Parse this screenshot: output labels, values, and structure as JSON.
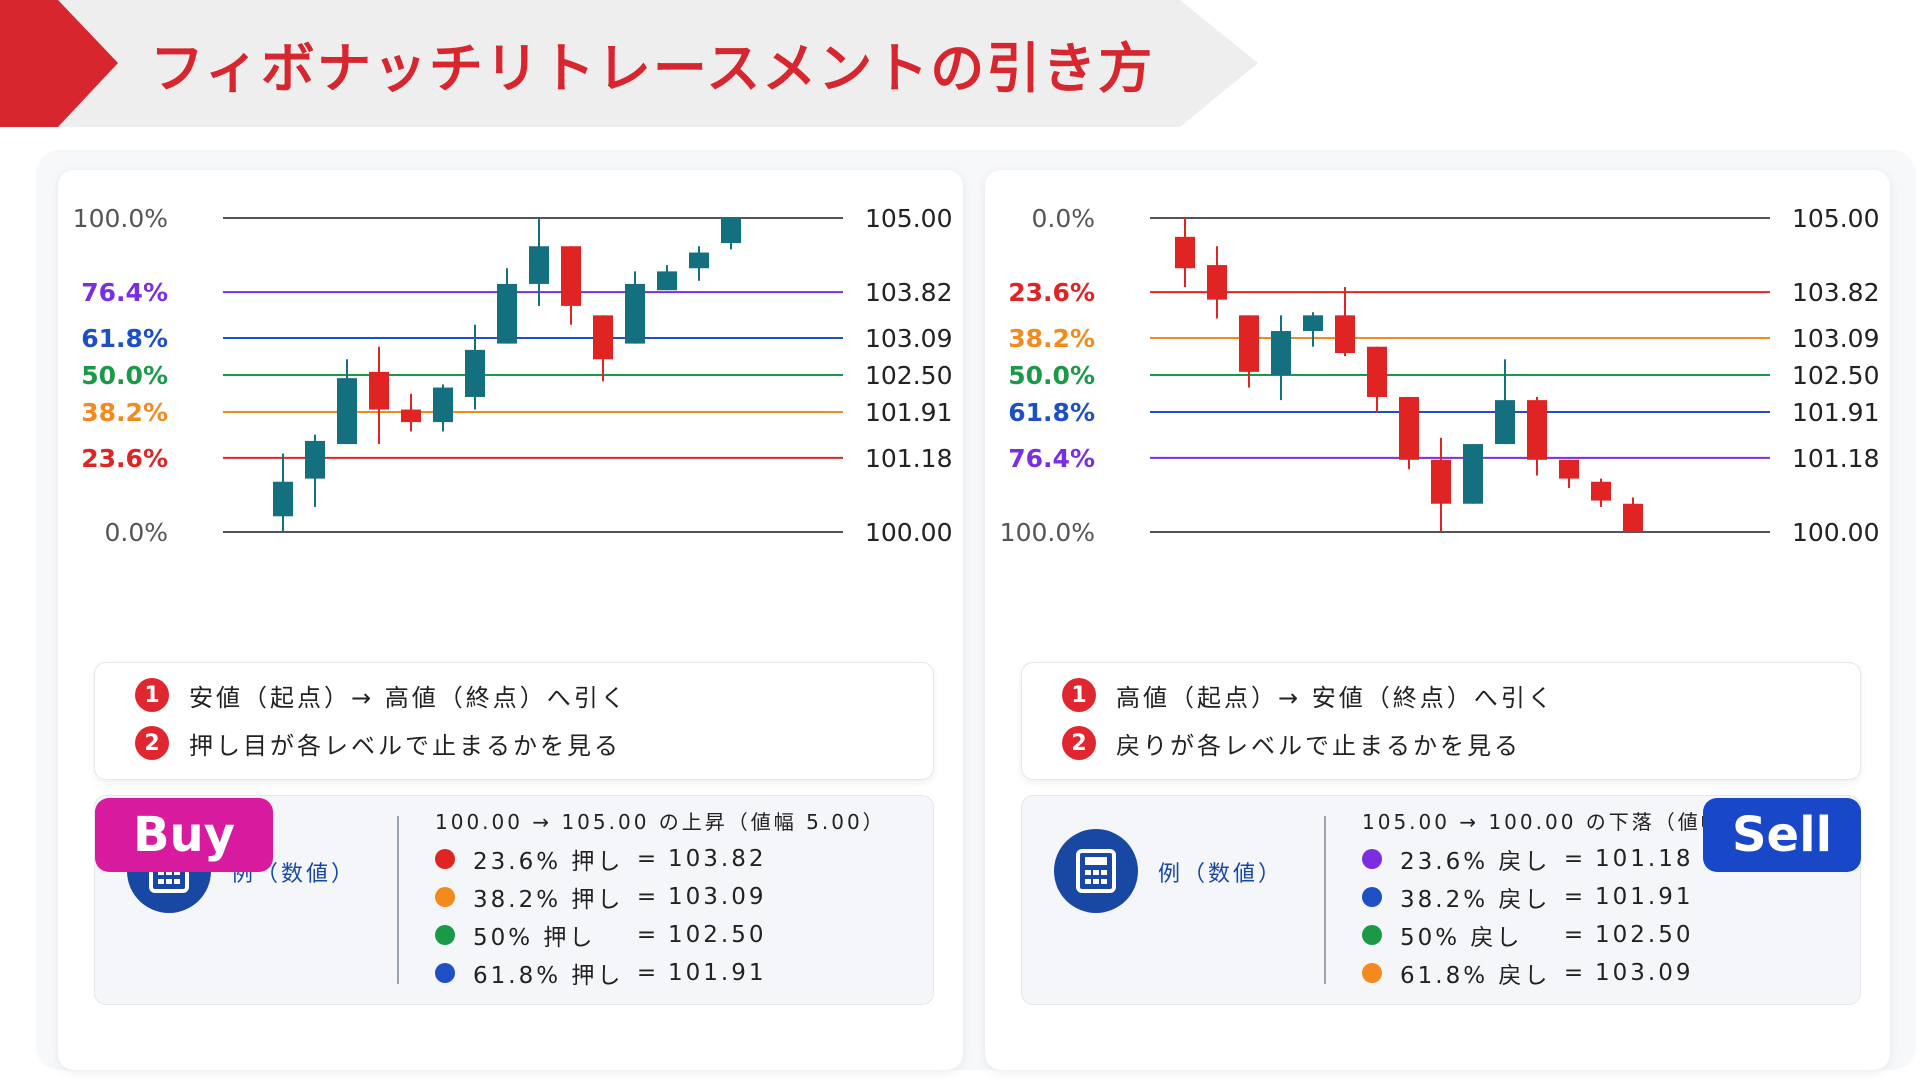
{
  "title": "フィボナッチリトレースメントの引き方",
  "colors": {
    "accent_red": "#d8262e",
    "bull": "#14707e",
    "bear": "#e02424",
    "buy_badge": "#d81b9e",
    "sell_badge": "#1848c8",
    "calc_icon": "#1848a4"
  },
  "buy": {
    "badge": "Buy",
    "steps": [
      {
        "num": "1",
        "text": "安値（起点）→ 高値（終点）へ引く"
      },
      {
        "num": "2",
        "text": "押し目が各レベルで止まるかを見る"
      }
    ],
    "example": {
      "icon": "calculator-icon",
      "label": "例（数値）",
      "header": "100.00 → 105.00 の上昇（値幅 5.00）",
      "rows": [
        {
          "color": "#e02424",
          "level": "23.6% 押し",
          "eq": "=",
          "value": "103.82"
        },
        {
          "color": "#f28a1e",
          "level": "38.2% 押し",
          "eq": "=",
          "value": "103.09"
        },
        {
          "color": "#1a9a46",
          "level": "50% 押し",
          "eq": "=",
          "value": "102.50"
        },
        {
          "color": "#1f4fc4",
          "level": "61.8% 押し",
          "eq": "=",
          "value": "101.91"
        }
      ]
    }
  },
  "sell": {
    "badge": "Sell",
    "steps": [
      {
        "num": "1",
        "text": "高値（起点）→ 安値（終点）へ引く"
      },
      {
        "num": "2",
        "text": "戻りが各レベルで止まるかを見る"
      }
    ],
    "example": {
      "icon": "calculator-icon",
      "label": "例（数値）",
      "header": "105.00 → 100.00 の下落（値幅 5.00）",
      "rows": [
        {
          "color": "#7b2ee0",
          "level": "23.6% 戻し",
          "eq": "=",
          "value": "101.18"
        },
        {
          "color": "#1f4fc4",
          "level": "38.2% 戻し",
          "eq": "=",
          "value": "101.91"
        },
        {
          "color": "#1a9a46",
          "level": "50% 戻し",
          "eq": "=",
          "value": "102.50"
        },
        {
          "color": "#f28a1e",
          "level": "61.8% 戻し",
          "eq": "=",
          "value": "103.09"
        }
      ]
    }
  },
  "chart_data": [
    {
      "type": "candlestick",
      "ylim": [
        100.0,
        105.0
      ],
      "grid": false,
      "levels": [
        {
          "pct": "100.0%",
          "price": 105.0,
          "price_label": "105.00",
          "color": "#555555"
        },
        {
          "pct": "76.4%",
          "price": 103.82,
          "price_label": "103.82",
          "color": "#7b2ee0"
        },
        {
          "pct": "61.8%",
          "price": 103.09,
          "price_label": "103.09",
          "color": "#1f4fc4"
        },
        {
          "pct": "50.0%",
          "price": 102.5,
          "price_label": "102.50",
          "color": "#1a9a46"
        },
        {
          "pct": "38.2%",
          "price": 101.91,
          "price_label": "101.91",
          "color": "#f28a1e"
        },
        {
          "pct": "23.6%",
          "price": 101.18,
          "price_label": "101.18",
          "color": "#e02424"
        },
        {
          "pct": "0.0%",
          "price": 100.0,
          "price_label": "100.00",
          "color": "#555555"
        }
      ],
      "candles": [
        {
          "o": 100.25,
          "h": 101.25,
          "l": 100.0,
          "c": 100.8
        },
        {
          "o": 100.85,
          "h": 101.55,
          "l": 100.4,
          "c": 101.45
        },
        {
          "o": 101.4,
          "h": 102.75,
          "l": 101.4,
          "c": 102.45
        },
        {
          "o": 102.55,
          "h": 102.95,
          "l": 101.4,
          "c": 101.95
        },
        {
          "o": 101.95,
          "h": 102.2,
          "l": 101.6,
          "c": 101.75
        },
        {
          "o": 101.75,
          "h": 102.35,
          "l": 101.6,
          "c": 102.3
        },
        {
          "o": 102.15,
          "h": 103.3,
          "l": 101.95,
          "c": 102.9
        },
        {
          "o": 103.0,
          "h": 104.2,
          "l": 103.0,
          "c": 103.95
        },
        {
          "o": 103.95,
          "h": 105.0,
          "l": 103.6,
          "c": 104.55
        },
        {
          "o": 104.55,
          "h": 104.55,
          "l": 103.3,
          "c": 103.6
        },
        {
          "o": 103.45,
          "h": 103.45,
          "l": 102.4,
          "c": 102.75
        },
        {
          "o": 103.0,
          "h": 104.15,
          "l": 103.0,
          "c": 103.95
        },
        {
          "o": 103.85,
          "h": 104.25,
          "l": 103.85,
          "c": 104.15
        },
        {
          "o": 104.2,
          "h": 104.55,
          "l": 104.0,
          "c": 104.45
        },
        {
          "o": 104.6,
          "h": 105.0,
          "l": 104.5,
          "c": 105.0
        }
      ]
    },
    {
      "type": "candlestick",
      "ylim": [
        100.0,
        105.0
      ],
      "grid": false,
      "levels": [
        {
          "pct": "0.0%",
          "price": 105.0,
          "price_label": "105.00",
          "color": "#555555"
        },
        {
          "pct": "23.6%",
          "price": 103.82,
          "price_label": "103.82",
          "color": "#e02424"
        },
        {
          "pct": "38.2%",
          "price": 103.09,
          "price_label": "103.09",
          "color": "#f28a1e"
        },
        {
          "pct": "50.0%",
          "price": 102.5,
          "price_label": "102.50",
          "color": "#1a9a46"
        },
        {
          "pct": "61.8%",
          "price": 101.91,
          "price_label": "101.91",
          "color": "#1f4fc4"
        },
        {
          "pct": "76.4%",
          "price": 101.18,
          "price_label": "101.18",
          "color": "#7b2ee0"
        },
        {
          "pct": "100.0%",
          "price": 100.0,
          "price_label": "100.00",
          "color": "#555555"
        }
      ],
      "candles": [
        {
          "o": 104.7,
          "h": 105.0,
          "l": 103.9,
          "c": 104.2
        },
        {
          "o": 104.25,
          "h": 104.55,
          "l": 103.4,
          "c": 103.7
        },
        {
          "o": 103.45,
          "h": 103.45,
          "l": 102.3,
          "c": 102.55
        },
        {
          "o": 102.5,
          "h": 103.45,
          "l": 102.1,
          "c": 103.2
        },
        {
          "o": 103.2,
          "h": 103.5,
          "l": 102.95,
          "c": 103.45
        },
        {
          "o": 103.45,
          "h": 103.9,
          "l": 102.8,
          "c": 102.85
        },
        {
          "o": 102.95,
          "h": 102.95,
          "l": 101.9,
          "c": 102.15
        },
        {
          "o": 102.15,
          "h": 102.15,
          "l": 101.0,
          "c": 101.15
        },
        {
          "o": 101.15,
          "h": 101.5,
          "l": 100.0,
          "c": 100.45
        },
        {
          "o": 100.45,
          "h": 101.4,
          "l": 100.45,
          "c": 101.4
        },
        {
          "o": 101.4,
          "h": 102.75,
          "l": 101.4,
          "c": 102.1
        },
        {
          "o": 102.1,
          "h": 102.15,
          "l": 100.9,
          "c": 101.15
        },
        {
          "o": 101.15,
          "h": 101.15,
          "l": 100.7,
          "c": 100.85
        },
        {
          "o": 100.8,
          "h": 100.85,
          "l": 100.4,
          "c": 100.5
        },
        {
          "o": 100.45,
          "h": 100.55,
          "l": 100.0,
          "c": 100.0
        }
      ]
    }
  ]
}
